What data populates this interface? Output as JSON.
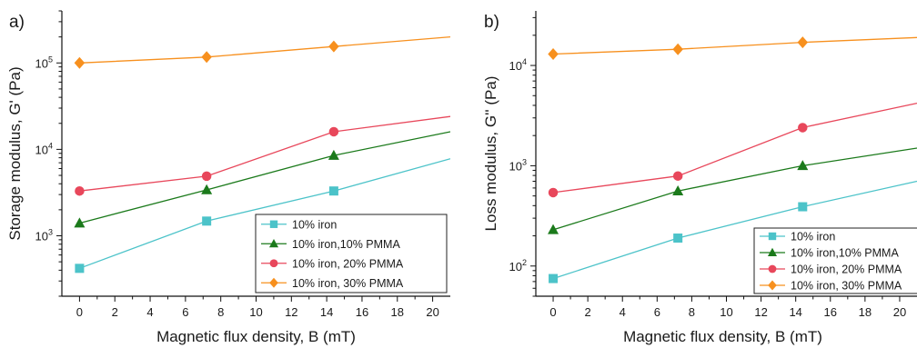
{
  "chart_data": [
    {
      "type": "line",
      "panel_label": "a)",
      "xlabel": "Magnetic flux density, B (mT)",
      "ylabel": "Storage modulus, G' (Pa)",
      "xlim": [
        -1,
        21
      ],
      "ylim": [
        200,
        400000
      ],
      "y_scale": "log",
      "x_ticks": [
        0,
        2,
        4,
        6,
        8,
        10,
        12,
        14,
        16,
        18,
        20
      ],
      "y_ticks": [
        {
          "value": 1000,
          "base": "10",
          "exp": "3"
        },
        {
          "value": 10000,
          "base": "10",
          "exp": "4"
        },
        {
          "value": 100000,
          "base": "10",
          "exp": "5"
        }
      ],
      "legend_position": "bottom-right",
      "x": [
        0,
        7.2,
        14.4,
        21
      ],
      "series": [
        {
          "name": "10% iron",
          "color": "#4cc3c9",
          "marker": "square",
          "values": [
            420,
            1480,
            3300,
            7800
          ]
        },
        {
          "name": "10% iron,10% PMMA",
          "color": "#1b7a1b",
          "marker": "triangle",
          "values": [
            1400,
            3400,
            8500,
            16000
          ]
        },
        {
          "name": "10% iron, 20% PMMA",
          "color": "#e8475b",
          "marker": "circle",
          "values": [
            3300,
            4900,
            16000,
            24000
          ]
        },
        {
          "name": "10% iron, 30% PMMA",
          "color": "#f7901e",
          "marker": "diamond",
          "values": [
            100000,
            117000,
            155000,
            200000
          ]
        }
      ]
    },
    {
      "type": "line",
      "panel_label": "b)",
      "xlabel": "Magnetic flux density, B (mT)",
      "ylabel": "Loss modulus, G'' (Pa)",
      "xlim": [
        -1,
        21
      ],
      "ylim": [
        50,
        35000
      ],
      "y_scale": "log",
      "x_ticks": [
        0,
        2,
        4,
        6,
        8,
        10,
        12,
        14,
        16,
        18,
        20
      ],
      "y_ticks": [
        {
          "value": 100,
          "base": "10",
          "exp": "2"
        },
        {
          "value": 1000,
          "base": "10",
          "exp": "3"
        },
        {
          "value": 10000,
          "base": "10",
          "exp": "4"
        }
      ],
      "legend_position": "bottom-right",
      "x": [
        0,
        7.2,
        14.4,
        21
      ],
      "series": [
        {
          "name": "10% iron",
          "color": "#4cc3c9",
          "marker": "square",
          "values": [
            75,
            190,
            390,
            700
          ]
        },
        {
          "name": "10% iron,10% PMMA",
          "color": "#1b7a1b",
          "marker": "triangle",
          "values": [
            230,
            560,
            1000,
            1500
          ]
        },
        {
          "name": "10% iron, 20% PMMA",
          "color": "#e8475b",
          "marker": "circle",
          "values": [
            540,
            790,
            2400,
            4200
          ]
        },
        {
          "name": "10% iron, 30% PMMA",
          "color": "#f7901e",
          "marker": "diamond",
          "values": [
            13000,
            14500,
            17000,
            19000
          ]
        }
      ]
    }
  ]
}
